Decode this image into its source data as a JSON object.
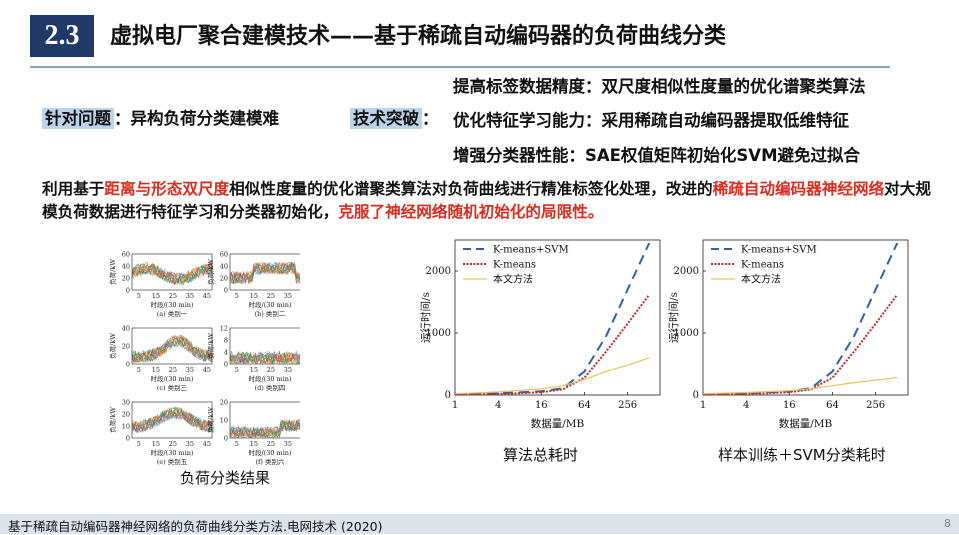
{
  "header": {
    "section_number": "2.3",
    "title": "虚拟电厂聚合建模技术——基于稀疏自动编码器的负荷曲线分类"
  },
  "problem": {
    "label": "针对问题",
    "text": "：异构负荷分类建模难"
  },
  "breakthrough": {
    "label": "技术突破",
    "colon": "：",
    "items": [
      "提高标签数据精度：双尺度相似性度量的优化谱聚类算法",
      "优化特征学习能力：采用稀疏自动编码器提取低维特征",
      "增强分类器性能：SAE权值矩阵初始化SVM避免过拟合"
    ]
  },
  "summary": {
    "p1": "利用基于",
    "r1": "距离与形态双尺度",
    "p2": "相似性度量的优化谱聚类算法对负荷曲线进行精准标签化处理，改进的",
    "r2": "稀疏自动编码器神经网络",
    "p3": "对大规模负荷数据进行特征学习和分类器初始化，",
    "r3": "克服了神经网络随机初始化的局限性。"
  },
  "load_panels": {
    "caption": "负荷分类结果",
    "x_label": "时段/(30 min)",
    "y_label": "负荷/kW",
    "x_ticks": [
      "5",
      "15",
      "25",
      "35",
      "45"
    ],
    "panels": [
      {
        "label": "(a) 类别一",
        "y_ticks": [
          "60",
          "40",
          "20",
          "0"
        ]
      },
      {
        "label": "(b) 类别二",
        "y_ticks": [
          "60",
          "40",
          "20",
          "0"
        ]
      },
      {
        "label": "(c) 类别三",
        "y_ticks": [
          "40",
          "20",
          "0"
        ]
      },
      {
        "label": "(d) 类别四",
        "y_ticks": [
          "12",
          "8",
          "4",
          "0"
        ]
      },
      {
        "label": "(e) 类别五",
        "y_ticks": [
          "30",
          "20",
          "10",
          "0"
        ]
      },
      {
        "label": "(f) 类别六",
        "y_ticks": [
          "20",
          "10",
          "0"
        ]
      }
    ]
  },
  "chart_data": [
    {
      "type": "line",
      "title": "算法总耗时",
      "xlabel": "数据量/MB",
      "ylabel": "运行时间/s",
      "x_scale": "log2",
      "x_ticks": [
        1,
        4,
        16,
        64,
        256
      ],
      "y_ticks": [
        0,
        1000,
        2000
      ],
      "ylim": [
        0,
        2500
      ],
      "legend": "top-left",
      "series": [
        {
          "name": "K-means+SVM",
          "color": "#2f62a8",
          "dash": "dashed",
          "x": [
            1,
            4,
            16,
            32,
            64,
            128,
            256,
            512
          ],
          "values": [
            10,
            25,
            60,
            110,
            380,
            950,
            1700,
            2450
          ]
        },
        {
          "name": "K-means",
          "color": "#c0282a",
          "dash": "dotted",
          "x": [
            1,
            4,
            16,
            32,
            64,
            128,
            256,
            512
          ],
          "values": [
            5,
            15,
            45,
            90,
            280,
            700,
            1150,
            1620
          ]
        },
        {
          "name": "本文方法",
          "color": "#e8c25e",
          "dash": "solid",
          "x": [
            1,
            4,
            16,
            32,
            64,
            128,
            256,
            512
          ],
          "values": [
            20,
            50,
            100,
            150,
            250,
            380,
            480,
            600
          ]
        }
      ]
    },
    {
      "type": "line",
      "title": "样本训练＋SVM分类耗时",
      "xlabel": "数据量/MB",
      "ylabel": "运行时间/s",
      "x_scale": "log2",
      "x_ticks": [
        1,
        4,
        16,
        64,
        256
      ],
      "y_ticks": [
        0,
        1000,
        2000
      ],
      "ylim": [
        0,
        2500
      ],
      "legend": "top-left",
      "series": [
        {
          "name": "K-means+SVM",
          "color": "#2f62a8",
          "dash": "dashed",
          "x": [
            1,
            4,
            16,
            32,
            64,
            128,
            256,
            512
          ],
          "values": [
            10,
            25,
            60,
            110,
            380,
            950,
            1700,
            2450
          ]
        },
        {
          "name": "K-means",
          "color": "#c0282a",
          "dash": "dotted",
          "x": [
            1,
            4,
            16,
            32,
            64,
            128,
            256,
            512
          ],
          "values": [
            5,
            15,
            45,
            90,
            280,
            700,
            1150,
            1620
          ]
        },
        {
          "name": "本文方法",
          "color": "#e8c25e",
          "dash": "solid",
          "x": [
            1,
            4,
            16,
            32,
            64,
            128,
            256,
            512
          ],
          "values": [
            20,
            40,
            70,
            100,
            150,
            200,
            240,
            280
          ]
        }
      ]
    }
  ],
  "footer": {
    "reference": "基于稀疏自动编码器神经网络的负荷曲线分类方法.电网技术 (2020)",
    "page": "8"
  }
}
